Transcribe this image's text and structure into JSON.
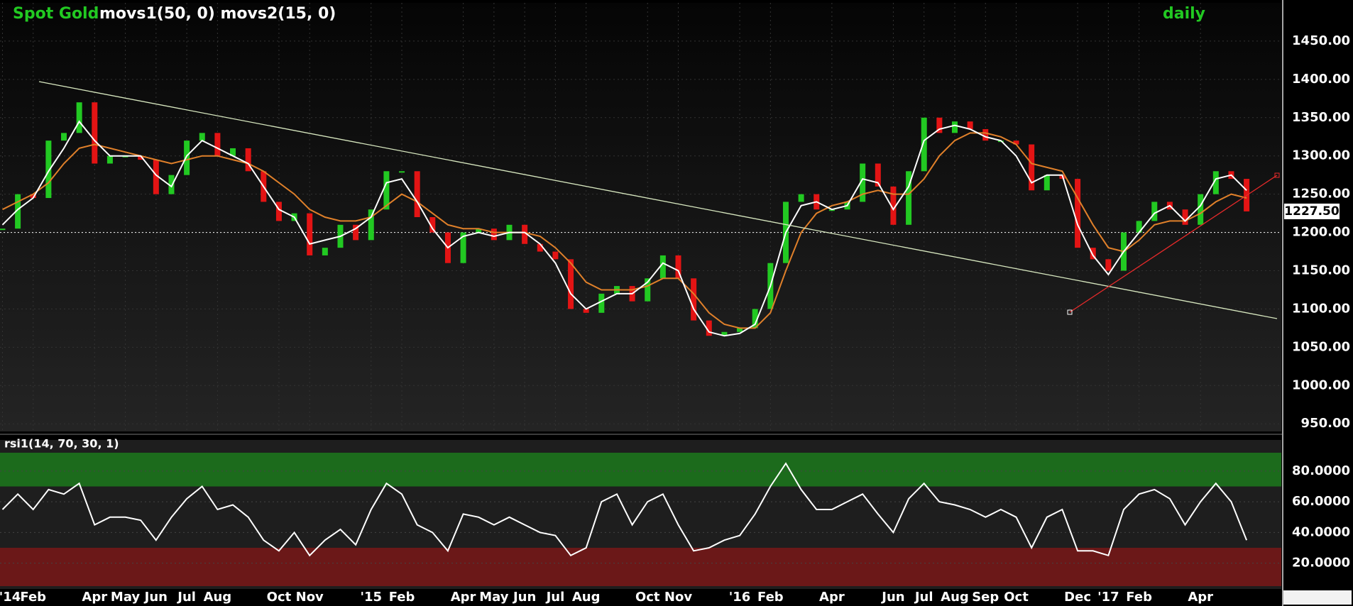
{
  "chart_data": [
    {
      "type": "candlestick",
      "title": "Spot Gold",
      "subtitle": "movs1(50, 0) movs2(15, 0)",
      "interval": "daily",
      "x": [
        0,
        0.5,
        1,
        1.5,
        2,
        2.5,
        3,
        3.5,
        4,
        4.5,
        5,
        5.5,
        6,
        6.5,
        7,
        7.5,
        8,
        8.5,
        9,
        9.5,
        10,
        10.5,
        11,
        11.5,
        12,
        12.5,
        13,
        13.5,
        14,
        14.5,
        15,
        15.5,
        16,
        16.5,
        17,
        17.5,
        18,
        18.5,
        19,
        19.5,
        20,
        20.5,
        21,
        21.5,
        22,
        22.5,
        23,
        23.5,
        24,
        24.5,
        25,
        25.5,
        26,
        26.5,
        27,
        27.5,
        28,
        28.5,
        29,
        29.5,
        30,
        30.5,
        31,
        31.5,
        32,
        32.5,
        33,
        33.5,
        34,
        34.5,
        35,
        35.5,
        36,
        36.5,
        37,
        37.5,
        38,
        38.5,
        39,
        39.5,
        40,
        40.5
      ],
      "xlim": [
        -0.08,
        41.63
      ],
      "xticks": [
        {
          "value": 0,
          "label": "'14"
        },
        {
          "value": 1,
          "label": "Feb"
        },
        {
          "value": 3,
          "label": "Apr"
        },
        {
          "value": 4,
          "label": "May"
        },
        {
          "value": 5,
          "label": "Jun"
        },
        {
          "value": 6,
          "label": "Jul"
        },
        {
          "value": 7,
          "label": "Aug"
        },
        {
          "value": 9,
          "label": "Oct"
        },
        {
          "value": 10,
          "label": "Nov"
        },
        {
          "value": 12,
          "label": "'15"
        },
        {
          "value": 13,
          "label": "Feb"
        },
        {
          "value": 15,
          "label": "Apr"
        },
        {
          "value": 16,
          "label": "May"
        },
        {
          "value": 17,
          "label": "Jun"
        },
        {
          "value": 18,
          "label": "Jul"
        },
        {
          "value": 19,
          "label": "Aug"
        },
        {
          "value": 21,
          "label": "Oct"
        },
        {
          "value": 22,
          "label": "Nov"
        },
        {
          "value": 24,
          "label": "'16"
        },
        {
          "value": 25,
          "label": "Feb"
        },
        {
          "value": 27,
          "label": "Apr"
        },
        {
          "value": 29,
          "label": "Jun"
        },
        {
          "value": 30,
          "label": "Jul"
        },
        {
          "value": 31,
          "label": "Aug"
        },
        {
          "value": 32,
          "label": "Sep"
        },
        {
          "value": 33,
          "label": "Oct"
        },
        {
          "value": 35,
          "label": "Dec"
        },
        {
          "value": 36,
          "label": "'17"
        },
        {
          "value": 37,
          "label": "Feb"
        },
        {
          "value": 39,
          "label": "Apr"
        }
      ],
      "ylim": [
        940,
        1500
      ],
      "yticks": [
        {
          "value": 950,
          "label": "950.00"
        },
        {
          "value": 1000,
          "label": "1000.00"
        },
        {
          "value": 1050,
          "label": "1050.00"
        },
        {
          "value": 1100,
          "label": "1100.00"
        },
        {
          "value": 1150,
          "label": "1150.00"
        },
        {
          "value": 1200,
          "label": "1200.00"
        },
        {
          "value": 1250,
          "label": "1250.00"
        },
        {
          "value": 1300,
          "label": "1300.00"
        },
        {
          "value": 1350,
          "label": "1350.00"
        },
        {
          "value": 1400,
          "label": "1400.00"
        },
        {
          "value": 1450,
          "label": "1450.00"
        }
      ],
      "grid": true,
      "hline": 1200,
      "last_price": {
        "value": 1227.5,
        "label": "1227.50"
      },
      "series": [
        {
          "color": "#22c922",
          "down_color": "#e31414",
          "values": [
            1205,
            1250,
            1245,
            1320,
            1330,
            1370,
            1290,
            1300,
            1300,
            1295,
            1250,
            1275,
            1320,
            1330,
            1300,
            1310,
            1280,
            1240,
            1215,
            1225,
            1170,
            1180,
            1210,
            1190,
            1230,
            1280,
            1280,
            1220,
            1200,
            1160,
            1200,
            1205,
            1190,
            1210,
            1185,
            1175,
            1165,
            1100,
            1095,
            1120,
            1130,
            1110,
            1140,
            1170,
            1140,
            1085,
            1065,
            1070,
            1075,
            1100,
            1160,
            1240,
            1250,
            1230,
            1230,
            1240,
            1290,
            1260,
            1210,
            1280,
            1350,
            1330,
            1345,
            1335,
            1320,
            1320,
            1315,
            1255,
            1275,
            1270,
            1180,
            1165,
            1150,
            1200,
            1215,
            1240,
            1230,
            1210,
            1250,
            1280,
            1270,
            1227.5
          ]
        },
        {
          "color": "#ffffff",
          "values": [
            1210,
            1230,
            1245,
            1280,
            1310,
            1345,
            1320,
            1300,
            1300,
            1300,
            1275,
            1260,
            1300,
            1320,
            1310,
            1300,
            1290,
            1260,
            1230,
            1220,
            1185,
            1190,
            1195,
            1205,
            1220,
            1265,
            1270,
            1240,
            1205,
            1180,
            1195,
            1200,
            1195,
            1200,
            1200,
            1185,
            1160,
            1120,
            1100,
            1110,
            1120,
            1120,
            1135,
            1160,
            1150,
            1100,
            1070,
            1065,
            1068,
            1080,
            1130,
            1200,
            1235,
            1240,
            1230,
            1235,
            1270,
            1265,
            1230,
            1260,
            1320,
            1335,
            1340,
            1335,
            1325,
            1320,
            1300,
            1265,
            1275,
            1275,
            1210,
            1170,
            1145,
            1175,
            1200,
            1225,
            1235,
            1215,
            1235,
            1270,
            1275,
            1255
          ]
        },
        {
          "color": "#e0802a",
          "values": [
            1230,
            1240,
            1250,
            1265,
            1290,
            1310,
            1315,
            1310,
            1305,
            1300,
            1295,
            1290,
            1295,
            1300,
            1300,
            1295,
            1290,
            1280,
            1265,
            1250,
            1230,
            1220,
            1215,
            1215,
            1220,
            1235,
            1250,
            1240,
            1225,
            1210,
            1205,
            1205,
            1200,
            1200,
            1200,
            1195,
            1180,
            1160,
            1135,
            1125,
            1125,
            1125,
            1130,
            1140,
            1140,
            1120,
            1095,
            1080,
            1075,
            1075,
            1095,
            1150,
            1200,
            1225,
            1235,
            1240,
            1250,
            1255,
            1250,
            1250,
            1270,
            1300,
            1320,
            1330,
            1330,
            1325,
            1315,
            1290,
            1285,
            1280,
            1245,
            1210,
            1180,
            1175,
            1190,
            1210,
            1215,
            1215,
            1225,
            1240,
            1250,
            1245
          ]
        }
      ]
    },
    {
      "type": "line",
      "title": "rsi1(14, 70, 30, 1)",
      "x": [
        0,
        0.5,
        1,
        1.5,
        2,
        2.5,
        3,
        3.5,
        4,
        4.5,
        5,
        5.5,
        6,
        6.5,
        7,
        7.5,
        8,
        8.5,
        9,
        9.5,
        10,
        10.5,
        11,
        11.5,
        12,
        12.5,
        13,
        13.5,
        14,
        14.5,
        15,
        15.5,
        16,
        16.5,
        17,
        17.5,
        18,
        18.5,
        19,
        19.5,
        20,
        20.5,
        21,
        21.5,
        22,
        22.5,
        23,
        23.5,
        24,
        24.5,
        25,
        25.5,
        26,
        26.5,
        27,
        27.5,
        28,
        28.5,
        29,
        29.5,
        30,
        30.5,
        31,
        31.5,
        32,
        32.5,
        33,
        33.5,
        34,
        34.5,
        35,
        35.5,
        36,
        36.5,
        37,
        37.5,
        38,
        38.5,
        39,
        39.5,
        40,
        40.5
      ],
      "xlim": [
        -0.08,
        41.63
      ],
      "ylim": [
        5,
        92
      ],
      "yticks": [
        {
          "value": 20,
          "label": "20.0000"
        },
        {
          "value": 40,
          "label": "40.0000"
        },
        {
          "value": 60,
          "label": "60.0000"
        },
        {
          "value": 80,
          "label": "80.0000"
        }
      ],
      "overbought": 70,
      "overbought_color": "#1c6b1c",
      "oversold": 30,
      "oversold_color": "#6b1818",
      "grid": true,
      "series": [
        {
          "color": "#ffffff",
          "values": [
            55,
            65,
            55,
            68,
            65,
            72,
            45,
            50,
            50,
            48,
            35,
            50,
            62,
            70,
            55,
            58,
            50,
            35,
            28,
            40,
            25,
            35,
            42,
            32,
            55,
            72,
            65,
            45,
            40,
            28,
            52,
            50,
            45,
            50,
            45,
            40,
            38,
            25,
            30,
            60,
            65,
            45,
            60,
            65,
            45,
            28,
            30,
            35,
            38,
            52,
            70,
            85,
            68,
            55,
            55,
            60,
            65,
            52,
            40,
            62,
            72,
            60,
            58,
            55,
            50,
            55,
            50,
            30,
            50,
            55,
            28,
            28,
            25,
            55,
            65,
            68,
            62,
            45,
            60,
            72,
            60,
            35
          ]
        }
      ]
    }
  ]
}
